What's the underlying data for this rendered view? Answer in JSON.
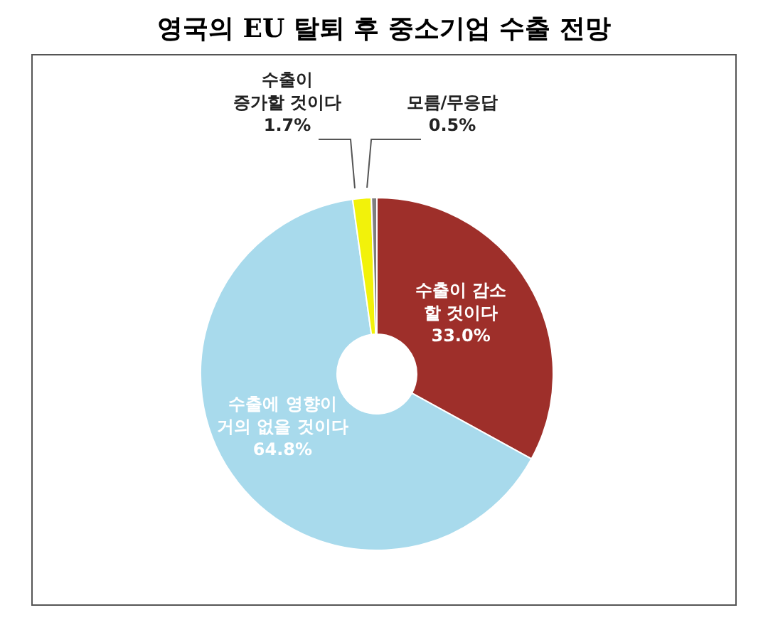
{
  "chart_data": {
    "type": "donut",
    "title": "영국의 EU 탈퇴 후 중소기업 수출 전망",
    "categories": [
      "수출이 감소\n할 것이다",
      "수출에 영향이\n거의 없을 것이다",
      "수출이\n증가할 것이다",
      "모름/무응답"
    ],
    "values": [
      33.0,
      64.8,
      1.7,
      0.5
    ],
    "value_labels": [
      "33.0%",
      "64.8%",
      "1.7%",
      "0.5%"
    ],
    "colors": [
      "#9e2f2a",
      "#a8daec",
      "#f2f20a",
      "#7f7f7f"
    ],
    "legend": false
  }
}
